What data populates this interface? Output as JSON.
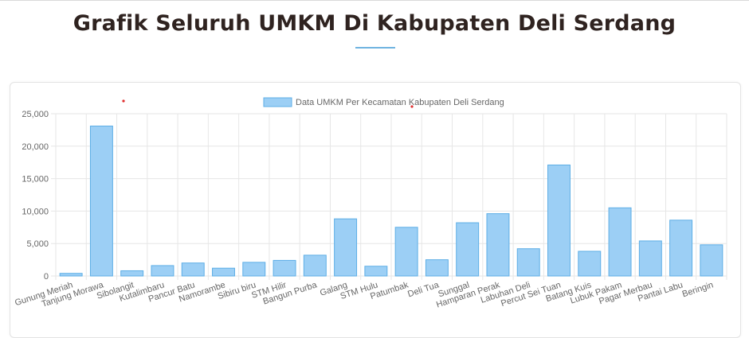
{
  "page": {
    "title": "Grafik Seluruh UMKM Di Kabupaten Deli Serdang"
  },
  "chart_data": {
    "type": "bar",
    "legend": {
      "label": "Data UMKM Per Kecamatan Kabupaten Deli Serdang",
      "position": "top-center"
    },
    "categories": [
      "Gunung Meriah",
      "Tanjung Morawa",
      "Sibolangit",
      "Kutalimbaru",
      "Pancur Batu",
      "Namorambe",
      "Sibiru biru",
      "STM Hilir",
      "Bangun Purba",
      "Galang",
      "STM Hulu",
      "Patumbak",
      "Deli Tua",
      "Sunggal",
      "Hamparan Perak",
      "Labuhan Deli",
      "Percut Sei Tuan",
      "Batang Kuis",
      "Lubuk Pakam",
      "Pagar Merbau",
      "Pantai Labu",
      "Beringin"
    ],
    "values": [
      400,
      23100,
      800,
      1600,
      2000,
      1200,
      2100,
      2400,
      3200,
      8800,
      1500,
      7500,
      2500,
      8200,
      9600,
      4200,
      17100,
      3800,
      10500,
      5400,
      8600,
      4800
    ],
    "ylim": [
      0,
      25000
    ],
    "yticks": [
      "0",
      "5,000",
      "10,000",
      "15,000",
      "20,000",
      "25,000"
    ],
    "ytick_values": [
      0,
      5000,
      10000,
      15000,
      20000,
      25000
    ],
    "grid": true,
    "bar_fill": "#9ccff5",
    "bar_stroke": "#5daee6"
  }
}
